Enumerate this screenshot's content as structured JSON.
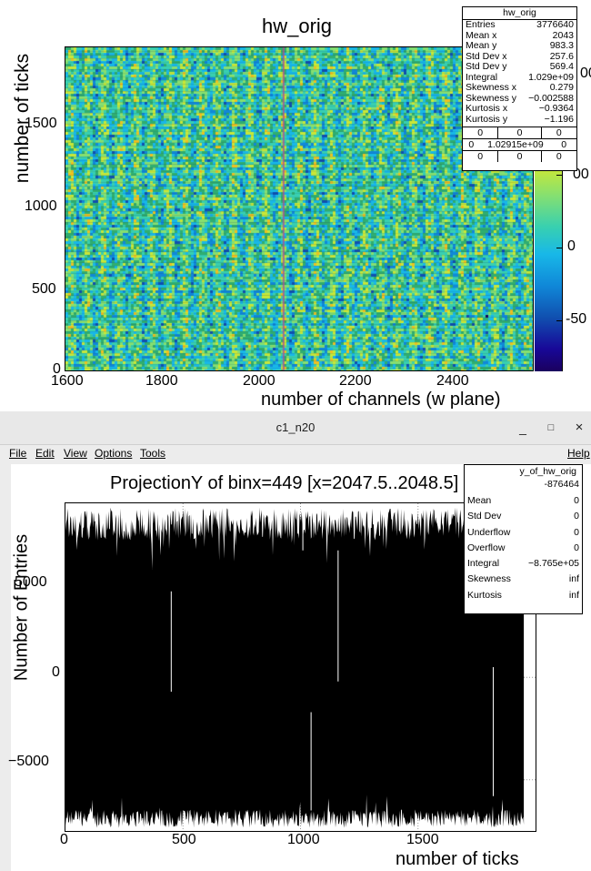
{
  "top_plot": {
    "title": "hw_orig",
    "x_axis_title": "number of channels (w plane)",
    "y_axis_title": "number of ticks",
    "x_tick_labels": [
      "1600",
      "1800",
      "2000",
      "2200",
      "2400"
    ],
    "y_tick_labels": [
      "0",
      "500",
      "1000",
      "1500"
    ],
    "palette_labels": [
      "00",
      "0",
      "-50"
    ],
    "stats": {
      "name": "hw_orig",
      "rows": [
        {
          "label": "Entries",
          "value": "3776640"
        },
        {
          "label": "Mean x",
          "value": "2043"
        },
        {
          "label": "Mean y",
          "value": "983.3"
        },
        {
          "label": "Std Dev x",
          "value": "257.6"
        },
        {
          "label": "Std Dev y",
          "value": "569.4"
        },
        {
          "label": "Integral",
          "value": "1.029e+09"
        },
        {
          "label": "Skewness x",
          "value": "0.279"
        },
        {
          "label": "Skewness y",
          "value": "-0.002588"
        },
        {
          "label": "Kurtosis x",
          "value": "-0.9364"
        },
        {
          "label": "Kurtosis y",
          "value": "-1.196"
        }
      ],
      "grid": [
        [
          "0",
          "0",
          "0"
        ],
        [
          "0",
          "1.02915e+09",
          "0"
        ],
        [
          "0",
          "0",
          "0"
        ]
      ]
    }
  },
  "window": {
    "title": "c1_n20",
    "minimize_glyph": "_",
    "maximize_glyph": "□",
    "close_glyph": "×",
    "menu": {
      "file": "File",
      "edit": "Edit",
      "view": "View",
      "options": "Options",
      "tools": "Tools",
      "help": "Help"
    }
  },
  "bottom_plot": {
    "title": "ProjectionY of binx=449 [x=2047.5..2048.5]",
    "y_axis_title": "Number of Entries",
    "x_axis_title": "number of ticks",
    "stats": {
      "name": "y_of_hw_orig",
      "entries_value": "-876464",
      "rows": [
        {
          "label": "Mean",
          "value": "0"
        },
        {
          "label": "Std Dev",
          "value": "0"
        },
        {
          "label": "Underflow",
          "value": "0"
        },
        {
          "label": "Overflow",
          "value": "0"
        },
        {
          "label": "Integral",
          "value": "-8.765e+05"
        },
        {
          "label": "Skewness",
          "value": "inf"
        },
        {
          "label": "Kurtosis",
          "value": "inf"
        }
      ]
    }
  },
  "chart_data": [
    {
      "type": "heatmap",
      "title": "hw_orig",
      "xlabel": "number of channels (w plane)",
      "ylabel": "number of ticks",
      "xlim": [
        1600,
        2560
      ],
      "ylim": [
        0,
        2000
      ],
      "x_ticks": [
        1600,
        1800,
        2000,
        2200,
        2400
      ],
      "y_ticks": [
        0,
        500,
        1000,
        1500
      ],
      "palette": "rainbow",
      "legend": "colour palette at right",
      "summary": {
        "entries": 3776640,
        "mean_x": 2043,
        "mean_y": 983.3,
        "integral": 1029000000.0
      }
    },
    {
      "type": "bar",
      "title": "ProjectionY of binx=449 [x=2047.5..2048.5]",
      "xlabel": "number of ticks",
      "ylabel": "Number of Entries",
      "xlim": [
        0,
        2000
      ],
      "ylim": [
        -7500,
        8500
      ],
      "x_ticks": [
        0,
        500,
        1000,
        1500
      ],
      "y_ticks": [
        -5000,
        0,
        5000
      ],
      "grid": true,
      "bars": "dense, alternating approximately between +7500 and -6900 across ticks 0..1950",
      "typical_high": 7500,
      "typical_low": -6900,
      "series": [
        {
          "values": "dense"
        }
      ]
    }
  ]
}
